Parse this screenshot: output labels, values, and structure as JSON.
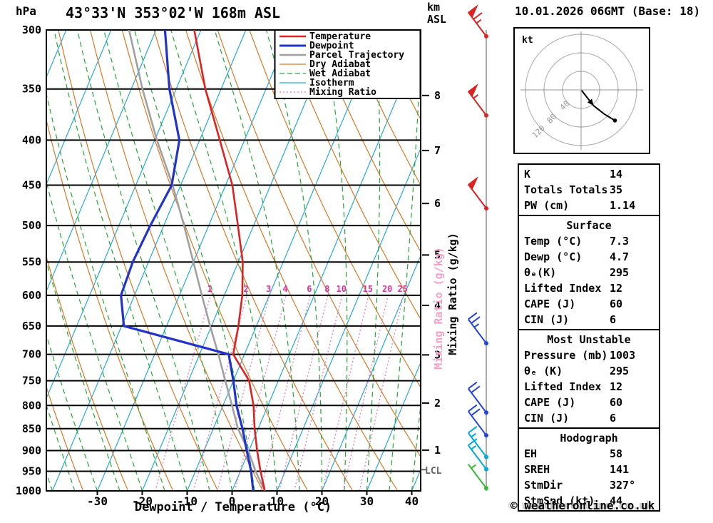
{
  "header": {
    "station": "43°33'N 353°02'W 168m ASL",
    "datetime": "10.01.2026 06GMT (Base: 18)"
  },
  "labels": {
    "hpa": "hPa",
    "km": "km",
    "asl": "ASL",
    "kt": "kt",
    "lcl": "LCL",
    "mixing_axis": "Mixing Ratio (g/kg)",
    "copyright": "© weatheronline.co.uk"
  },
  "legend": [
    {
      "label": "Temperature",
      "color": "#dd2222",
      "style": "solid",
      "width": 2.5
    },
    {
      "label": "Dewpoint",
      "color": "#2233cc",
      "style": "solid",
      "width": 3
    },
    {
      "label": "Parcel Trajectory",
      "color": "#a0a0a0",
      "style": "solid",
      "width": 2.5
    },
    {
      "label": "Dry Adiabat",
      "color": "#dd7722",
      "style": "solid",
      "width": 1.3
    },
    {
      "label": "Wet Adiabat",
      "color": "#22aa33",
      "style": "dashed",
      "width": 1.3
    },
    {
      "label": "Isotherm",
      "color": "#22aadd",
      "style": "solid",
      "width": 1.3
    },
    {
      "label": "Mixing Ratio",
      "color": "#ee77bb",
      "style": "dotted",
      "width": 1.3
    }
  ],
  "chart_data": {
    "type": "line",
    "variant": "skew-t-log-p",
    "title": "43°33'N 353°02'W 168m ASL",
    "xlabel": "Dewpoint / Temperature (°C)",
    "ylabel": "hPa",
    "x_ticks_c": [
      -30,
      -20,
      -10,
      0,
      10,
      20,
      30,
      40
    ],
    "pressure_ticks_hpa": [
      300,
      350,
      400,
      450,
      500,
      550,
      600,
      650,
      700,
      750,
      800,
      850,
      900,
      950,
      1000
    ],
    "pressures_hpa": [
      1000,
      950,
      900,
      850,
      800,
      750,
      700,
      650,
      600,
      550,
      500,
      450,
      400,
      350,
      300
    ],
    "series": [
      {
        "name": "Temperature",
        "color": "#dd2222",
        "width": 2.6,
        "values_c": [
          7.3,
          4.5,
          1.8,
          -0.8,
          -3.2,
          -6.5,
          -12.5,
          -14.0,
          -16.0,
          -19.0,
          -23.5,
          -28.5,
          -35.5,
          -43.5,
          -51.5
        ]
      },
      {
        "name": "Dewpoint",
        "color": "#2233cc",
        "width": 3.2,
        "values_c": [
          4.7,
          2.4,
          -0.5,
          -3.5,
          -7.0,
          -10.0,
          -13.5,
          -39.5,
          -43.0,
          -43.5,
          -43.0,
          -42.0,
          -44.5,
          -51.5,
          -58.0
        ]
      },
      {
        "name": "Parcel Trajectory",
        "color": "#a0a0a0",
        "width": 2.6,
        "values_c": [
          7.3,
          3.4,
          -0.2,
          -4.5,
          -8.0,
          -11.8,
          -15.8,
          -20.3,
          -25.0,
          -30.0,
          -35.5,
          -41.8,
          -49.5,
          -57.5,
          -66.0
        ]
      }
    ],
    "mixing_ratio_gkg": [
      1,
      2,
      3,
      4,
      6,
      8,
      10,
      15,
      20,
      25
    ],
    "km_asl_ticks": [
      {
        "km": 8,
        "hpa": 356
      },
      {
        "km": 7,
        "hpa": 411
      },
      {
        "km": 6,
        "hpa": 472
      },
      {
        "km": 5,
        "hpa": 540
      },
      {
        "km": 4,
        "hpa": 616
      },
      {
        "km": 3,
        "hpa": 701
      },
      {
        "km": 2,
        "hpa": 795
      },
      {
        "km": 1,
        "hpa": 899
      }
    ],
    "lcl_hpa": 946,
    "isotherm_step_c": 10,
    "dry_adiabat_step_k": 10,
    "wet_adiabat_step_c": 5,
    "grid": true
  },
  "wind_barbs": [
    {
      "hpa": 305,
      "speed_kt": 65,
      "color": "#dd2222"
    },
    {
      "hpa": 375,
      "speed_kt": 55,
      "color": "#dd2222"
    },
    {
      "hpa": 478,
      "speed_kt": 50,
      "color": "#dd2222"
    },
    {
      "hpa": 680,
      "speed_kt": 25,
      "color": "#2244dd"
    },
    {
      "hpa": 815,
      "speed_kt": 20,
      "color": "#2244dd"
    },
    {
      "hpa": 865,
      "speed_kt": 20,
      "color": "#2244dd"
    },
    {
      "hpa": 915,
      "speed_kt": 15,
      "color": "#00aadd"
    },
    {
      "hpa": 945,
      "speed_kt": 15,
      "color": "#00aadd"
    },
    {
      "hpa": 993,
      "speed_kt": 5,
      "color": "#33bb33"
    }
  ],
  "hodograph": {
    "unit": "kt",
    "rings_kt": [
      40,
      80,
      120
    ],
    "trace_kt": [
      [
        1,
        -1
      ],
      [
        27,
        -34
      ],
      [
        50,
        -52
      ],
      [
        73,
        -66
      ]
    ],
    "arrow_index": 1
  },
  "table": {
    "sections": [
      {
        "title": "",
        "rows": [
          [
            "K",
            "14"
          ],
          [
            "Totals Totals",
            "35"
          ],
          [
            "PW (cm)",
            "1.14"
          ]
        ]
      },
      {
        "title": "Surface",
        "rows": [
          [
            "Temp (°C)",
            "7.3"
          ],
          [
            "Dewp (°C)",
            "4.7"
          ],
          [
            "θₑ(K)",
            "295"
          ],
          [
            "Lifted Index",
            "12"
          ],
          [
            "CAPE (J)",
            "60"
          ],
          [
            "CIN (J)",
            "6"
          ]
        ]
      },
      {
        "title": "Most Unstable",
        "rows": [
          [
            "Pressure (mb)",
            "1003"
          ],
          [
            "θₑ (K)",
            "295"
          ],
          [
            "Lifted Index",
            "12"
          ],
          [
            "CAPE (J)",
            "60"
          ],
          [
            "CIN (J)",
            "6"
          ]
        ]
      },
      {
        "title": "Hodograph",
        "rows": [
          [
            "EH",
            "58"
          ],
          [
            "SREH",
            "141"
          ],
          [
            "StmDir",
            "327°"
          ],
          [
            "StmSpd (kt)",
            "44"
          ]
        ]
      }
    ]
  }
}
